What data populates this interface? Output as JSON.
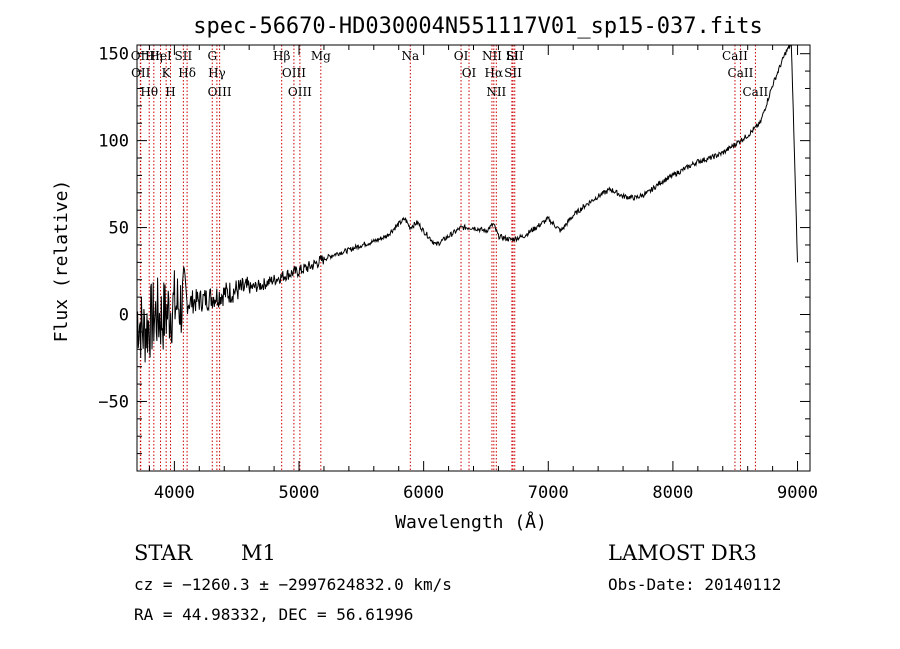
{
  "chart_data": {
    "type": "line",
    "title": "spec-56670-HD030004N551117V01_sp15-037.fits",
    "xlabel": "Wavelength (Å)",
    "ylabel": "Flux (relative)",
    "xlim": [
      3700,
      9100
    ],
    "ylim": [
      -90,
      155
    ],
    "x_ticks": [
      4000,
      5000,
      6000,
      7000,
      8000,
      9000
    ],
    "x_tick_labels": [
      "4000",
      "5000",
      "6000",
      "7000",
      "8000",
      "9000"
    ],
    "y_ticks": [
      -50,
      0,
      50,
      100,
      150
    ],
    "y_tick_labels": [
      "−50",
      "0",
      "50",
      "100",
      "150"
    ],
    "series": [
      {
        "name": "spectrum",
        "x": [
          3700,
          3750,
          3800,
          3850,
          3900,
          3950,
          4000,
          4100,
          4200,
          4300,
          4400,
          4500,
          4600,
          4700,
          4800,
          4900,
          5000,
          5100,
          5200,
          5300,
          5400,
          5500,
          5600,
          5700,
          5800,
          5850,
          5890,
          5950,
          6000,
          6100,
          6200,
          6300,
          6400,
          6500,
          6560,
          6600,
          6700,
          6800,
          6900,
          7000,
          7100,
          7200,
          7300,
          7400,
          7500,
          7600,
          7700,
          7800,
          7900,
          8000,
          8100,
          8200,
          8300,
          8400,
          8500,
          8600,
          8700,
          8800,
          8900,
          8950,
          9000
        ],
        "y": [
          0,
          -10,
          -5,
          0,
          -2,
          2,
          5,
          7,
          8,
          10,
          12,
          14,
          15,
          17,
          20,
          23,
          25,
          28,
          32,
          35,
          37,
          40,
          42,
          45,
          52,
          55,
          50,
          53,
          48,
          40,
          45,
          50,
          50,
          48,
          52,
          45,
          43,
          45,
          50,
          55,
          48,
          57,
          63,
          68,
          72,
          68,
          67,
          70,
          76,
          80,
          84,
          88,
          90,
          93,
          98,
          103,
          110,
          132,
          150,
          156,
          30
        ]
      }
    ],
    "spectral_lines": [
      {
        "label": "Hθ",
        "x": 3798
      },
      {
        "label": "OII",
        "x": 3727
      },
      {
        "label": "OII",
        "x": 3730
      },
      {
        "label": "K",
        "x": 3934
      },
      {
        "label": "HeI",
        "x": 3889
      },
      {
        "label": "Hη",
        "x": 3835
      },
      {
        "label": "SII",
        "x": 4072
      },
      {
        "label": "H",
        "x": 3969
      },
      {
        "label": "Hδ",
        "x": 4102
      },
      {
        "label": "OIII",
        "x": 4363
      },
      {
        "label": "Hγ",
        "x": 4341
      },
      {
        "label": "G",
        "x": 4304
      },
      {
        "label": "Hβ",
        "x": 4861
      },
      {
        "label": "OIII",
        "x": 5007
      },
      {
        "label": "OIII",
        "x": 4959
      },
      {
        "label": "Mg",
        "x": 5175
      },
      {
        "label": "Na",
        "x": 5893
      },
      {
        "label": "OI",
        "x": 6300
      },
      {
        "label": "OI",
        "x": 6364
      },
      {
        "label": "Hα",
        "x": 6563
      },
      {
        "label": "NII",
        "x": 6548
      },
      {
        "label": "NII",
        "x": 6583
      },
      {
        "label": "SII",
        "x": 6717
      },
      {
        "label": "Li",
        "x": 6708
      },
      {
        "label": "SII",
        "x": 6731
      },
      {
        "label": "CaII",
        "x": 8498
      },
      {
        "label": "CaII",
        "x": 8542
      },
      {
        "label": "CaII",
        "x": 8662
      }
    ]
  },
  "info": {
    "class_label": "STAR",
    "subclass_label": "M1",
    "survey": "LAMOST DR3",
    "redshift_line": "cz = −1260.3 ± −2997624832.0 km/s",
    "obs_date": "Obs-Date: 20140112",
    "coords": "RA =  44.98332, DEC =  56.61996"
  },
  "colors": {
    "line_marker": "#cc0000",
    "spectrum": "#000000"
  }
}
